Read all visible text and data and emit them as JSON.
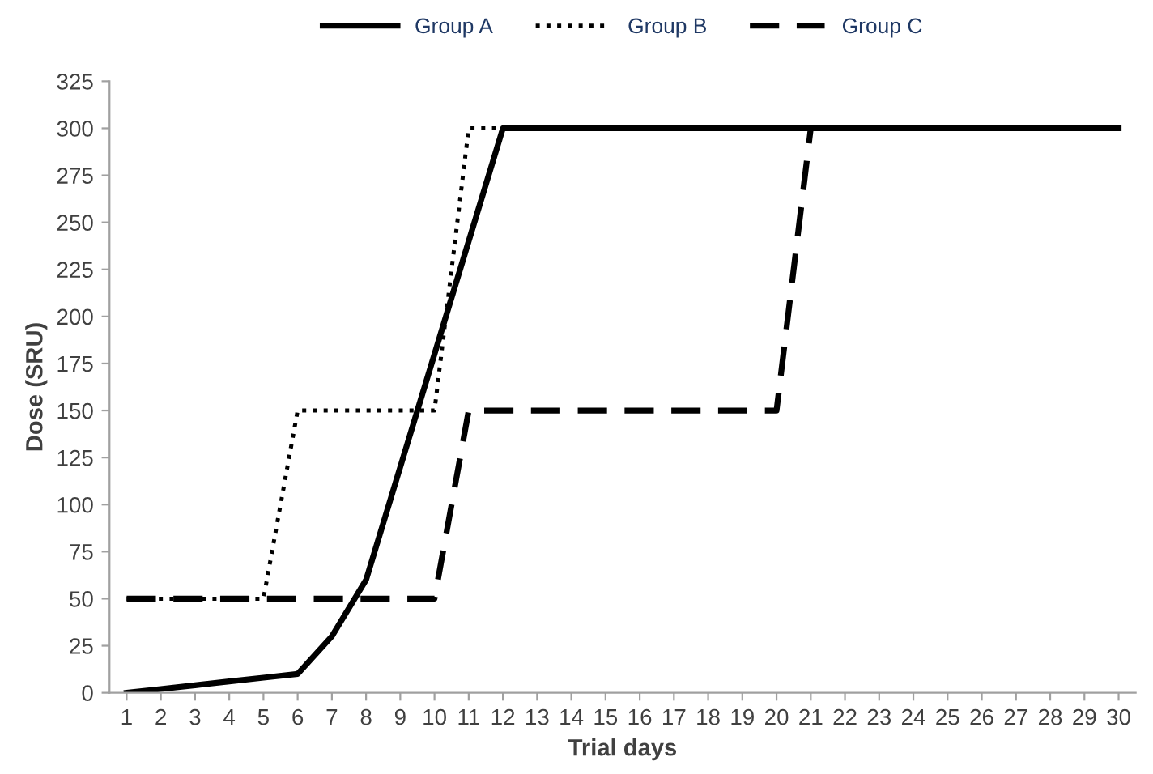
{
  "chart_data": {
    "type": "line",
    "xlabel": "Trial days",
    "ylabel": "Dose (SRU)",
    "categories": [
      "1",
      "2",
      "3",
      "4",
      "5",
      "6",
      "7",
      "8",
      "9",
      "10",
      "11",
      "12",
      "13",
      "14",
      "15",
      "16",
      "17",
      "18",
      "19",
      "20",
      "21",
      "22",
      "23",
      "24",
      "25",
      "26",
      "27",
      "28",
      "29",
      "30"
    ],
    "series": [
      {
        "name": "Group A",
        "color": "#000000",
        "line_style": "solid",
        "values": [
          0,
          2,
          4,
          6,
          8,
          10,
          30,
          60,
          120,
          180,
          240,
          300,
          300,
          300,
          300,
          300,
          300,
          300,
          300,
          300,
          300,
          300,
          300,
          300,
          300,
          300,
          300,
          300,
          300,
          300
        ]
      },
      {
        "name": "Group B",
        "color": "#000000",
        "line_style": "dotted",
        "values": [
          50,
          50,
          50,
          50,
          50,
          150,
          150,
          150,
          150,
          150,
          300,
          300,
          300,
          300,
          300,
          300,
          300,
          300,
          300,
          300,
          300,
          300,
          300,
          300,
          300,
          300,
          300,
          300,
          300,
          300
        ]
      },
      {
        "name": "Group C",
        "color": "#000000",
        "line_style": "dashed",
        "values": [
          50,
          50,
          50,
          50,
          50,
          50,
          50,
          50,
          50,
          50,
          150,
          150,
          150,
          150,
          150,
          150,
          150,
          150,
          150,
          150,
          300,
          300,
          300,
          300,
          300,
          300,
          300,
          300,
          300,
          300
        ]
      }
    ],
    "ylim": [
      0,
      325
    ],
    "yticks": [
      0,
      25,
      50,
      75,
      100,
      125,
      150,
      175,
      200,
      225,
      250,
      275,
      300,
      325
    ],
    "grid": false,
    "legend": "top",
    "marker": "none"
  }
}
